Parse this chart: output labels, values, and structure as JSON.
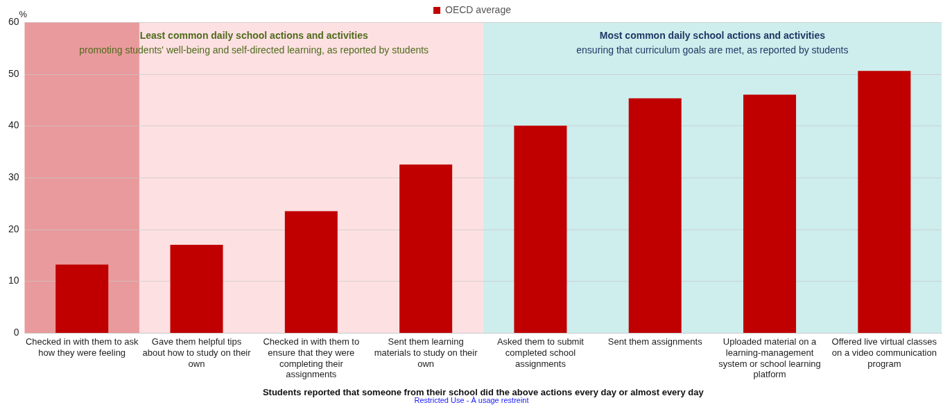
{
  "chart_data": {
    "type": "bar",
    "xlabel": "Students reported that someone from their school did the above actions every day or almost every day",
    "ylabel": "%",
    "categories": [
      "Checked in with them to ask how they were feeling",
      "Gave them helpful tips about how to study on their own",
      "Checked in with them to ensure that they were completing their assignments",
      "Sent them learning materials to study on their own",
      "Asked them to submit completed school assignments",
      "Sent them assignments",
      "Uploaded material on a learning-management system or school learning platform",
      "Offered live virtual classes on a video communication program"
    ],
    "series": [
      {
        "name": "OECD average",
        "color": "#c00000",
        "values": [
          13.2,
          17.0,
          23.5,
          32.5,
          40.0,
          45.3,
          46.0,
          50.6
        ]
      }
    ],
    "ylim": [
      0,
      60
    ],
    "yticks": [
      0,
      10,
      20,
      30,
      40,
      50,
      60
    ],
    "grid": "y",
    "legend": "top",
    "bands": [
      {
        "axis": "x",
        "from": "Checked in with them to ask how they were feeling",
        "to": "Sent them learning materials to study on their own",
        "label": "Least common daily school actions and activities\npromoting students' well-being and self-directed learning, as reported by students",
        "color": "#fde0e2"
      },
      {
        "axis": "x",
        "from": "Checked in with them to ask how they were feeling",
        "to": "Checked in with them to ask how they were feeling",
        "color": "#e99a9c"
      },
      {
        "axis": "x",
        "from": "Asked them to submit completed school assignments",
        "to": "Offered live virtual classes on a video communication program",
        "label": "Most common daily school actions and activities\nensuring that curriculum goals are met, as reported by students",
        "color": "#ceeded"
      }
    ],
    "annotations": [
      "Restricted Use - À usage restreint"
    ]
  }
}
